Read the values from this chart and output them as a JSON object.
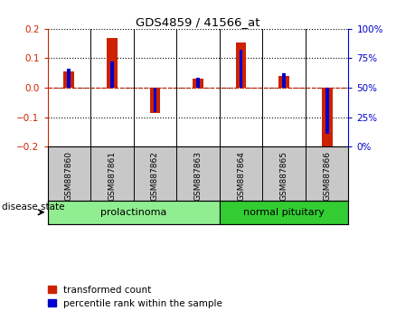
{
  "title": "GDS4859 / 41566_at",
  "samples": [
    "GSM887860",
    "GSM887861",
    "GSM887862",
    "GSM887863",
    "GSM887864",
    "GSM887865",
    "GSM887866"
  ],
  "transformed_count": [
    0.055,
    0.17,
    -0.085,
    0.03,
    0.155,
    0.04,
    -0.205
  ],
  "percentile_rank": [
    0.065,
    0.09,
    -0.083,
    0.033,
    0.13,
    0.05,
    -0.155
  ],
  "ylim": [
    -0.2,
    0.2
  ],
  "yticks_left": [
    -0.2,
    -0.1,
    0,
    0.1,
    0.2
  ],
  "yticks_right": [
    0,
    25,
    50,
    75,
    100
  ],
  "yticks_right_pos": [
    -0.2,
    -0.1,
    0.0,
    0.1,
    0.2
  ],
  "groups": [
    {
      "label": "prolactinoma",
      "indices": [
        0,
        1,
        2,
        3
      ],
      "color": "#90EE90"
    },
    {
      "label": "normal pituitary",
      "indices": [
        4,
        5,
        6
      ],
      "color": "#33CC33"
    }
  ],
  "disease_state_label": "disease state",
  "red_color": "#CC2200",
  "blue_color": "#0000CC",
  "bg_color": "#FFFFFF",
  "label_color_area": "#C8C8C8",
  "label_transformed": "transformed count",
  "label_percentile": "percentile rank within the sample",
  "red_bar_width": 0.25,
  "blue_bar_width": 0.08
}
